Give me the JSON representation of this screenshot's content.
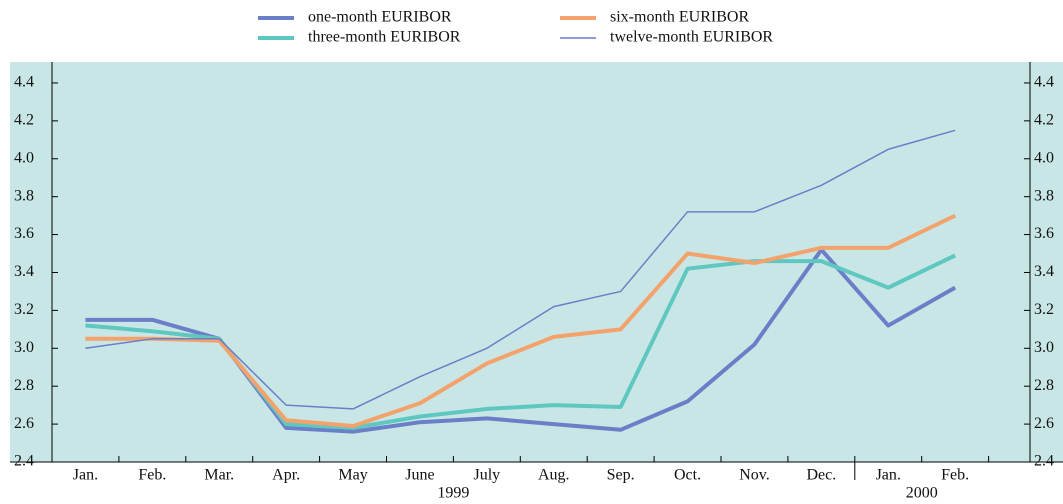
{
  "chart_data": {
    "type": "line",
    "categories": [
      "Jan.",
      "Feb.",
      "Mar.",
      "Apr.",
      "May",
      "June",
      "July",
      "Aug.",
      "Sep.",
      "Oct.",
      "Nov.",
      "Dec.",
      "Jan.",
      "Feb."
    ],
    "year_labels": [
      "1999",
      "2000"
    ],
    "series": [
      {
        "name": "one-month EURIBOR",
        "color": "#6a7fc8",
        "values": [
          3.15,
          3.15,
          3.05,
          2.58,
          2.56,
          2.61,
          2.63,
          2.6,
          2.57,
          2.72,
          3.02,
          3.52,
          3.12,
          3.32
        ]
      },
      {
        "name": "three-month EURIBOR",
        "color": "#5ec8c0",
        "values": [
          3.12,
          3.09,
          3.05,
          2.6,
          2.58,
          2.64,
          2.68,
          2.7,
          2.69,
          3.42,
          3.46,
          3.46,
          3.32,
          3.49
        ]
      },
      {
        "name": "six-month EURIBOR",
        "color": "#f4a26c",
        "values": [
          3.05,
          3.05,
          3.04,
          2.62,
          2.59,
          2.71,
          2.92,
          3.06,
          3.1,
          3.5,
          3.45,
          3.53,
          3.53,
          3.7
        ]
      },
      {
        "name": "twelve-month EURIBOR",
        "color": "#6a7fc8",
        "values": [
          3.0,
          3.05,
          3.05,
          2.7,
          2.68,
          2.85,
          3.0,
          3.22,
          3.3,
          3.72,
          3.72,
          3.86,
          4.05,
          4.15
        ]
      }
    ],
    "ylim": [
      2.4,
      4.5
    ],
    "yticks": [
      2.4,
      2.6,
      2.8,
      {
        "value": 3.0,
        "label": "3.0"
      },
      3.2,
      3.4,
      3.6,
      3.8,
      {
        "value": 4.0,
        "label": "4.0"
      },
      4.2,
      4.4
    ]
  }
}
